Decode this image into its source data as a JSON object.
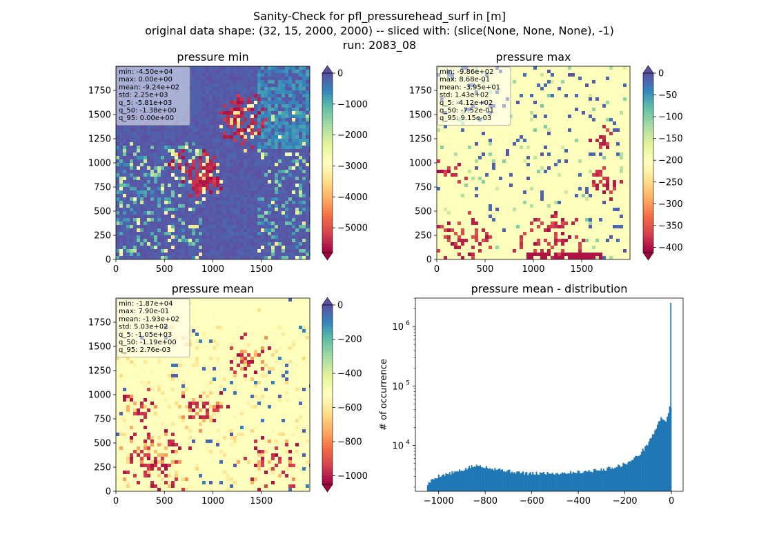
{
  "figure": {
    "suptitle_lines": [
      "Sanity-Check for pfl_pressurehead_surf in [m]",
      "original data shape: (32, 15, 2000, 2000) -- sliced with: (slice(None, None, None), -1)",
      "run: 2083_08"
    ]
  },
  "chart_data": [
    {
      "type": "heatmap",
      "title": "pressure min",
      "xlim": [
        0,
        2000
      ],
      "ylim": [
        0,
        2000
      ],
      "xticks": [
        0,
        500,
        1000,
        1500
      ],
      "yticks": [
        0,
        250,
        500,
        750,
        1000,
        1250,
        1500,
        1750
      ],
      "colormap": "Spectral",
      "colorbar": {
        "vmin": -5800,
        "vmax": 0,
        "ticks": [
          0,
          -1000,
          -2000,
          -3000,
          -4000,
          -5000
        ],
        "extend": "both"
      },
      "stats_box": [
        "min: -4.50e+04",
        "max: 0.00e+00",
        "mean: -9.24e+02",
        "std: 2.25e+03",
        "q_5: -5.81e+03",
        "q_50: -1.38e+00",
        "q_95: 0.00e+00"
      ]
    },
    {
      "type": "heatmap",
      "title": "pressure max",
      "xlim": [
        0,
        2000
      ],
      "ylim": [
        0,
        2000
      ],
      "xticks": [
        0,
        500,
        1000,
        1500
      ],
      "yticks": [
        0,
        250,
        500,
        750,
        1000,
        1250,
        1500,
        1750
      ],
      "colormap": "Spectral",
      "colorbar": {
        "vmin": -412,
        "vmax": 0,
        "ticks": [
          0,
          -50,
          -100,
          -150,
          -200,
          -250,
          -300,
          -350,
          -400
        ],
        "extend": "both"
      },
      "stats_box": [
        "min: -9.86e+02",
        "max: 8.68e-01",
        "mean: -3.95e+01",
        "std: 1.43e+02",
        "q_5: -4.12e+02",
        "q_50: -7.52e-01",
        "q_95: 9.15e-03"
      ]
    },
    {
      "type": "heatmap",
      "title": "pressure mean",
      "xlim": [
        0,
        2000
      ],
      "ylim": [
        0,
        2000
      ],
      "xticks": [
        0,
        500,
        1000,
        1500
      ],
      "yticks": [
        0,
        250,
        500,
        750,
        1000,
        1250,
        1500,
        1750
      ],
      "colormap": "Spectral",
      "colorbar": {
        "vmin": -1050,
        "vmax": 0,
        "ticks": [
          0,
          -200,
          -400,
          -600,
          -800,
          -1000
        ],
        "extend": "both"
      },
      "stats_box": [
        "min: -1.87e+04",
        "max: 7.90e-01",
        "mean: -1.93e+02",
        "std: 5.03e+02",
        "q_5: -1.05e+03",
        "q_50: -1.19e+00",
        "q_95: 2.76e-03"
      ]
    },
    {
      "type": "bar",
      "title": "pressure mean - distribution",
      "xlabel": "",
      "ylabel": "# of occurrence",
      "xlim": [
        -1100,
        50
      ],
      "ylog": true,
      "ylim": [
        1700,
        3000000
      ],
      "xticks": [
        -1000,
        -800,
        -600,
        -400,
        -200,
        0
      ],
      "yticks": [
        10000,
        100000,
        1000000
      ],
      "bar_color": "#1f77b4",
      "bins": {
        "start": -1050,
        "width": 5.25,
        "anchors": [
          [
            -1050,
            2200
          ],
          [
            -1030,
            2600
          ],
          [
            -1000,
            3100
          ],
          [
            -950,
            3400
          ],
          [
            -900,
            3800
          ],
          [
            -860,
            4400
          ],
          [
            -820,
            4600
          ],
          [
            -780,
            4200
          ],
          [
            -740,
            4000
          ],
          [
            -700,
            3700
          ],
          [
            -650,
            3500
          ],
          [
            -600,
            3350
          ],
          [
            -550,
            3450
          ],
          [
            -500,
            3400
          ],
          [
            -450,
            3500
          ],
          [
            -400,
            3600
          ],
          [
            -350,
            3750
          ],
          [
            -300,
            3900
          ],
          [
            -250,
            4300
          ],
          [
            -200,
            4900
          ],
          [
            -170,
            5600
          ],
          [
            -140,
            7000
          ],
          [
            -110,
            9500
          ],
          [
            -90,
            13000
          ],
          [
            -70,
            18000
          ],
          [
            -55,
            24000
          ],
          [
            -45,
            30000
          ],
          [
            -35,
            28000
          ],
          [
            -25,
            26000
          ],
          [
            -15,
            30000
          ],
          [
            -8,
            43000
          ],
          [
            0,
            43000
          ]
        ],
        "peak": {
          "x": 0,
          "count": 2500000
        }
      }
    }
  ]
}
